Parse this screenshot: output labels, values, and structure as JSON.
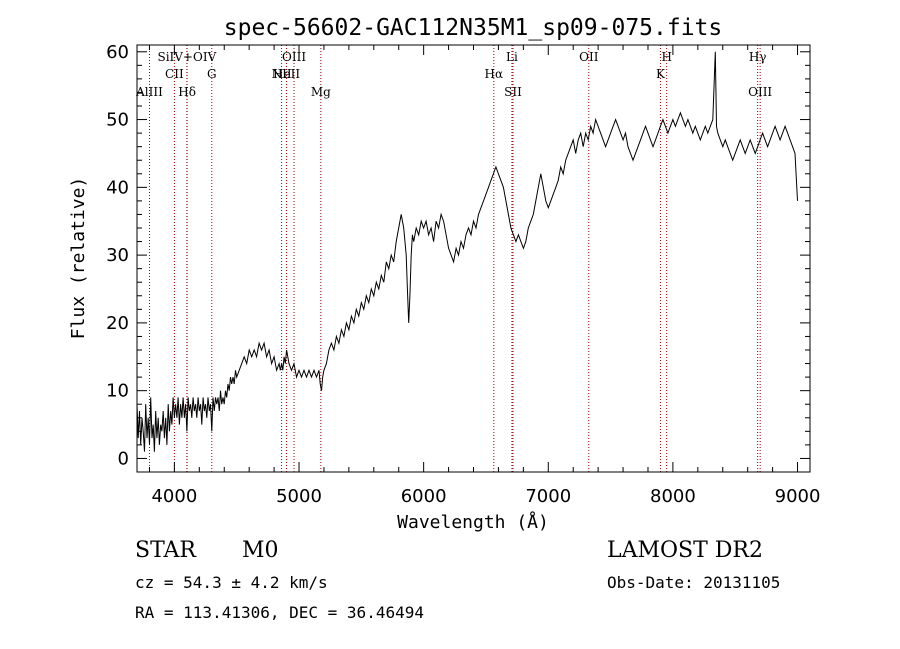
{
  "chart_data": {
    "type": "line",
    "title": "spec-56602-GAC112N35M1_sp09-075.fits",
    "xlabel": "Wavelength (Å)",
    "ylabel": "Flux (relative)",
    "xlim": [
      3700,
      9100
    ],
    "ylim": [
      -2,
      61
    ],
    "xticks": [
      4000,
      5000,
      6000,
      7000,
      8000,
      9000
    ],
    "yticks": [
      0,
      10,
      20,
      30,
      40,
      50,
      60
    ],
    "grid": false,
    "line_color": "#000000",
    "marker_color": "#a00000",
    "spectrum": [
      [
        3700,
        8
      ],
      [
        3710,
        3
      ],
      [
        3720,
        7
      ],
      [
        3730,
        2
      ],
      [
        3740,
        6
      ],
      [
        3750,
        4
      ],
      [
        3760,
        1
      ],
      [
        3770,
        8
      ],
      [
        3780,
        3
      ],
      [
        3790,
        6
      ],
      [
        3800,
        2
      ],
      [
        3810,
        9
      ],
      [
        3820,
        3
      ],
      [
        3830,
        5
      ],
      [
        3840,
        1
      ],
      [
        3850,
        7
      ],
      [
        3860,
        3
      ],
      [
        3870,
        6
      ],
      [
        3880,
        2
      ],
      [
        3890,
        5
      ],
      [
        3900,
        4
      ],
      [
        3910,
        7
      ],
      [
        3920,
        3
      ],
      [
        3930,
        6
      ],
      [
        3940,
        2
      ],
      [
        3950,
        8
      ],
      [
        3960,
        4
      ],
      [
        3970,
        7
      ],
      [
        3980,
        5
      ],
      [
        3990,
        9
      ],
      [
        4000,
        6
      ],
      [
        4010,
        8
      ],
      [
        4020,
        6
      ],
      [
        4030,
        9
      ],
      [
        4040,
        5
      ],
      [
        4050,
        8
      ],
      [
        4060,
        6
      ],
      [
        4070,
        9
      ],
      [
        4080,
        6
      ],
      [
        4090,
        8
      ],
      [
        4100,
        4
      ],
      [
        4110,
        9
      ],
      [
        4120,
        7
      ],
      [
        4130,
        8
      ],
      [
        4140,
        6
      ],
      [
        4150,
        9
      ],
      [
        4160,
        7
      ],
      [
        4170,
        8
      ],
      [
        4180,
        6
      ],
      [
        4190,
        9
      ],
      [
        4200,
        7
      ],
      [
        4210,
        8
      ],
      [
        4220,
        5
      ],
      [
        4230,
        9
      ],
      [
        4240,
        7
      ],
      [
        4250,
        8
      ],
      [
        4260,
        6
      ],
      [
        4270,
        9
      ],
      [
        4280,
        7
      ],
      [
        4290,
        8
      ],
      [
        4300,
        4
      ],
      [
        4310,
        9
      ],
      [
        4320,
        7
      ],
      [
        4330,
        9
      ],
      [
        4340,
        8
      ],
      [
        4350,
        9
      ],
      [
        4360,
        7
      ],
      [
        4370,
        10
      ],
      [
        4380,
        8
      ],
      [
        4390,
        9
      ],
      [
        4400,
        8
      ],
      [
        4410,
        10
      ],
      [
        4420,
        9
      ],
      [
        4430,
        11
      ],
      [
        4440,
        10
      ],
      [
        4450,
        12
      ],
      [
        4460,
        11
      ],
      [
        4470,
        12
      ],
      [
        4480,
        11
      ],
      [
        4490,
        13
      ],
      [
        4500,
        12
      ],
      [
        4520,
        13
      ],
      [
        4540,
        14
      ],
      [
        4560,
        15
      ],
      [
        4580,
        14
      ],
      [
        4600,
        16
      ],
      [
        4620,
        15
      ],
      [
        4640,
        16
      ],
      [
        4660,
        15
      ],
      [
        4680,
        17
      ],
      [
        4700,
        16
      ],
      [
        4720,
        17
      ],
      [
        4740,
        15
      ],
      [
        4760,
        16
      ],
      [
        4780,
        14
      ],
      [
        4800,
        15
      ],
      [
        4820,
        13
      ],
      [
        4840,
        14
      ],
      [
        4850,
        13
      ],
      [
        4860,
        14
      ],
      [
        4870,
        13
      ],
      [
        4880,
        15
      ],
      [
        4890,
        14
      ],
      [
        4900,
        16
      ],
      [
        4910,
        15
      ],
      [
        4920,
        14
      ],
      [
        4940,
        13
      ],
      [
        4960,
        14
      ],
      [
        4980,
        12
      ],
      [
        5000,
        13
      ],
      [
        5020,
        12
      ],
      [
        5040,
        13
      ],
      [
        5060,
        12
      ],
      [
        5080,
        13
      ],
      [
        5100,
        12
      ],
      [
        5120,
        13
      ],
      [
        5140,
        12
      ],
      [
        5160,
        13
      ],
      [
        5170,
        11
      ],
      [
        5180,
        10
      ],
      [
        5190,
        12
      ],
      [
        5200,
        13
      ],
      [
        5220,
        14
      ],
      [
        5240,
        16
      ],
      [
        5260,
        17
      ],
      [
        5280,
        16
      ],
      [
        5300,
        18
      ],
      [
        5320,
        17
      ],
      [
        5340,
        19
      ],
      [
        5360,
        18
      ],
      [
        5380,
        20
      ],
      [
        5400,
        19
      ],
      [
        5420,
        21
      ],
      [
        5440,
        20
      ],
      [
        5460,
        22
      ],
      [
        5480,
        21
      ],
      [
        5500,
        23
      ],
      [
        5520,
        22
      ],
      [
        5540,
        24
      ],
      [
        5560,
        23
      ],
      [
        5580,
        25
      ],
      [
        5600,
        24
      ],
      [
        5620,
        26
      ],
      [
        5640,
        25
      ],
      [
        5660,
        27
      ],
      [
        5680,
        26
      ],
      [
        5700,
        29
      ],
      [
        5720,
        28
      ],
      [
        5740,
        30
      ],
      [
        5760,
        29
      ],
      [
        5780,
        32
      ],
      [
        5800,
        34
      ],
      [
        5820,
        36
      ],
      [
        5840,
        34
      ],
      [
        5860,
        30
      ],
      [
        5870,
        25
      ],
      [
        5880,
        20
      ],
      [
        5890,
        24
      ],
      [
        5900,
        30
      ],
      [
        5910,
        33
      ],
      [
        5920,
        32
      ],
      [
        5940,
        34
      ],
      [
        5960,
        33
      ],
      [
        5980,
        35
      ],
      [
        6000,
        34
      ],
      [
        6020,
        35
      ],
      [
        6040,
        33
      ],
      [
        6060,
        34
      ],
      [
        6080,
        32
      ],
      [
        6100,
        35
      ],
      [
        6120,
        34
      ],
      [
        6140,
        36
      ],
      [
        6160,
        35
      ],
      [
        6180,
        33
      ],
      [
        6200,
        31
      ],
      [
        6220,
        30
      ],
      [
        6240,
        29
      ],
      [
        6260,
        31
      ],
      [
        6280,
        30
      ],
      [
        6300,
        32
      ],
      [
        6320,
        31
      ],
      [
        6340,
        33
      ],
      [
        6360,
        34
      ],
      [
        6380,
        33
      ],
      [
        6400,
        35
      ],
      [
        6420,
        34
      ],
      [
        6440,
        36
      ],
      [
        6460,
        37
      ],
      [
        6480,
        38
      ],
      [
        6500,
        39
      ],
      [
        6520,
        40
      ],
      [
        6540,
        41
      ],
      [
        6560,
        42
      ],
      [
        6580,
        43
      ],
      [
        6600,
        42
      ],
      [
        6620,
        41
      ],
      [
        6640,
        40
      ],
      [
        6660,
        38
      ],
      [
        6680,
        36
      ],
      [
        6700,
        34
      ],
      [
        6720,
        33
      ],
      [
        6740,
        32
      ],
      [
        6760,
        33
      ],
      [
        6780,
        32
      ],
      [
        6800,
        31
      ],
      [
        6820,
        32
      ],
      [
        6840,
        34
      ],
      [
        6860,
        35
      ],
      [
        6880,
        36
      ],
      [
        6900,
        38
      ],
      [
        6920,
        40
      ],
      [
        6940,
        42
      ],
      [
        6960,
        40
      ],
      [
        6980,
        38
      ],
      [
        7000,
        37
      ],
      [
        7020,
        38
      ],
      [
        7040,
        39
      ],
      [
        7060,
        40
      ],
      [
        7080,
        41
      ],
      [
        7100,
        43
      ],
      [
        7120,
        42
      ],
      [
        7140,
        44
      ],
      [
        7160,
        45
      ],
      [
        7180,
        46
      ],
      [
        7200,
        47
      ],
      [
        7220,
        45
      ],
      [
        7240,
        47
      ],
      [
        7260,
        48
      ],
      [
        7280,
        46
      ],
      [
        7300,
        48
      ],
      [
        7320,
        47
      ],
      [
        7340,
        49
      ],
      [
        7360,
        48
      ],
      [
        7380,
        50
      ],
      [
        7400,
        49
      ],
      [
        7420,
        48
      ],
      [
        7440,
        47
      ],
      [
        7460,
        46
      ],
      [
        7480,
        47
      ],
      [
        7500,
        48
      ],
      [
        7520,
        49
      ],
      [
        7540,
        50
      ],
      [
        7560,
        49
      ],
      [
        7580,
        48
      ],
      [
        7600,
        47
      ],
      [
        7620,
        48
      ],
      [
        7640,
        46
      ],
      [
        7660,
        45
      ],
      [
        7680,
        44
      ],
      [
        7700,
        45
      ],
      [
        7720,
        46
      ],
      [
        7740,
        47
      ],
      [
        7760,
        48
      ],
      [
        7780,
        49
      ],
      [
        7800,
        48
      ],
      [
        7820,
        47
      ],
      [
        7840,
        46
      ],
      [
        7860,
        47
      ],
      [
        7880,
        48
      ],
      [
        7900,
        49
      ],
      [
        7920,
        50
      ],
      [
        7940,
        49
      ],
      [
        7960,
        48
      ],
      [
        7980,
        49
      ],
      [
        8000,
        50
      ],
      [
        8020,
        49
      ],
      [
        8040,
        50
      ],
      [
        8060,
        51
      ],
      [
        8080,
        50
      ],
      [
        8100,
        49
      ],
      [
        8120,
        50
      ],
      [
        8140,
        49
      ],
      [
        8160,
        48
      ],
      [
        8180,
        49
      ],
      [
        8200,
        48
      ],
      [
        8220,
        47
      ],
      [
        8240,
        48
      ],
      [
        8260,
        49
      ],
      [
        8280,
        48
      ],
      [
        8300,
        49
      ],
      [
        8320,
        50
      ],
      [
        8340,
        60
      ],
      [
        8350,
        49
      ],
      [
        8360,
        48
      ],
      [
        8380,
        47
      ],
      [
        8400,
        46
      ],
      [
        8420,
        47
      ],
      [
        8440,
        46
      ],
      [
        8460,
        45
      ],
      [
        8480,
        44
      ],
      [
        8500,
        45
      ],
      [
        8520,
        46
      ],
      [
        8540,
        47
      ],
      [
        8560,
        46
      ],
      [
        8580,
        45
      ],
      [
        8600,
        46
      ],
      [
        8620,
        47
      ],
      [
        8640,
        46
      ],
      [
        8660,
        45
      ],
      [
        8680,
        46
      ],
      [
        8700,
        47
      ],
      [
        8720,
        48
      ],
      [
        8740,
        47
      ],
      [
        8760,
        46
      ],
      [
        8780,
        47
      ],
      [
        8800,
        48
      ],
      [
        8820,
        49
      ],
      [
        8840,
        48
      ],
      [
        8860,
        47
      ],
      [
        8880,
        48
      ],
      [
        8900,
        49
      ],
      [
        8920,
        48
      ],
      [
        8940,
        47
      ],
      [
        8960,
        46
      ],
      [
        8980,
        45
      ],
      [
        9000,
        38
      ]
    ],
    "lines": [
      {
        "label": "AlIII",
        "x": 3800,
        "row": 3
      },
      {
        "label": "CII",
        "x": 4000,
        "row": 2
      },
      {
        "label": "SiIV+OIV",
        "x": 4100,
        "row": 1
      },
      {
        "label": "Hδ",
        "x": 4102,
        "row": 3
      },
      {
        "label": "G",
        "x": 4300,
        "row": 2
      },
      {
        "label": "NII",
        "x": 4860,
        "row": 2
      },
      {
        "label": "HeII",
        "x": 4900,
        "row": 2
      },
      {
        "label": "OIII",
        "x": 4960,
        "row": 1
      },
      {
        "label": "Mg",
        "x": 5175,
        "row": 3
      },
      {
        "label": "Hα",
        "x": 6563,
        "row": 2
      },
      {
        "label": "Li",
        "x": 6708,
        "row": 1
      },
      {
        "label": "SII",
        "x": 6717,
        "row": 3
      },
      {
        "label": "OII",
        "x": 7325,
        "row": 1
      },
      {
        "label": "K",
        "x": 7900,
        "row": 2
      },
      {
        "label": "H",
        "x": 7950,
        "row": 1
      },
      {
        "label": "Hγ",
        "x": 8680,
        "row": 1
      },
      {
        "label": "OIII",
        "x": 8700,
        "row": 3
      }
    ]
  },
  "info": {
    "class": "STAR",
    "subclass": "M0",
    "survey": "LAMOST DR2",
    "cz": "cz = 54.3 ± 4.2 km/s",
    "obs_date": "Obs-Date: 20131105",
    "coords": "RA = 113.41306, DEC =  36.46494"
  }
}
